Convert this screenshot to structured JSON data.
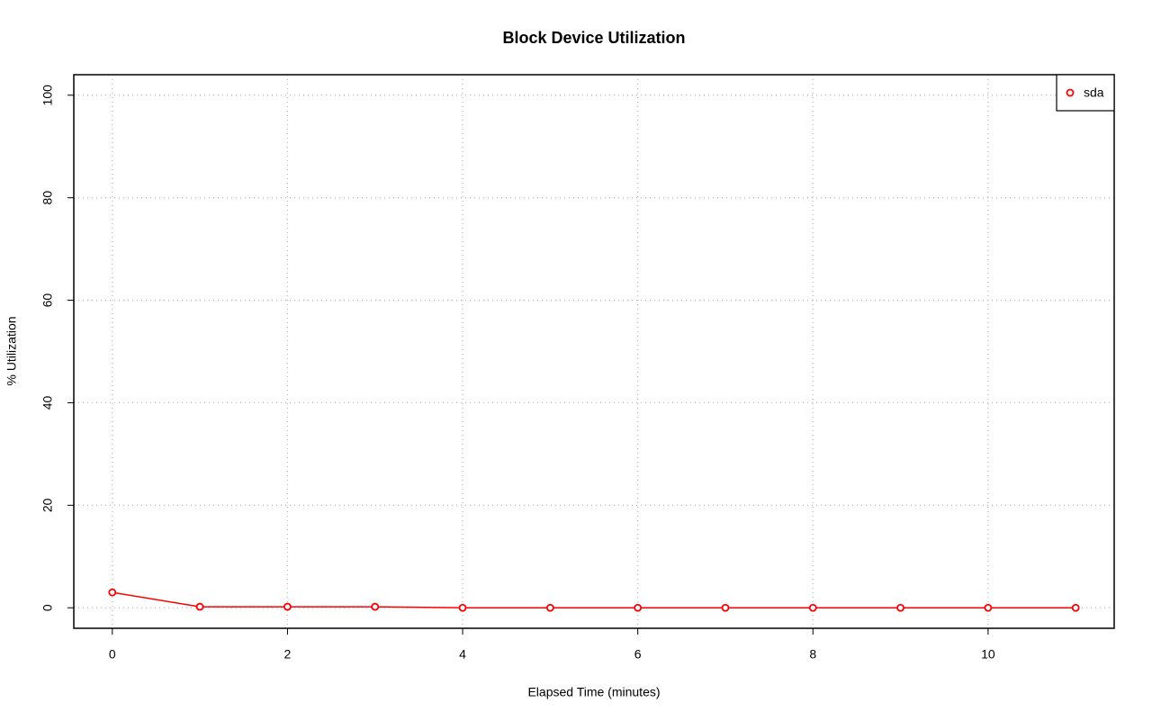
{
  "chart_data": {
    "type": "line",
    "title": "Block Device Utilization",
    "x_label": "Elapsed Time (minutes)",
    "y_label": "% Utilization",
    "x": [
      0,
      1,
      2,
      3,
      4,
      5,
      6,
      7,
      8,
      9,
      10,
      11
    ],
    "series": [
      {
        "name": "sda",
        "color": "#ff0000",
        "values": [
          3.0,
          0.2,
          0.2,
          0.2,
          0,
          0,
          0,
          0,
          0,
          0,
          0,
          0
        ]
      }
    ],
    "xlim": [
      -0.44,
      11.44
    ],
    "ylim": [
      -4,
      104
    ],
    "xticks": [
      0,
      2,
      4,
      6,
      8,
      10
    ],
    "yticks": [
      0,
      20,
      40,
      60,
      80,
      100
    ],
    "grid": true,
    "legend": "top-right"
  }
}
